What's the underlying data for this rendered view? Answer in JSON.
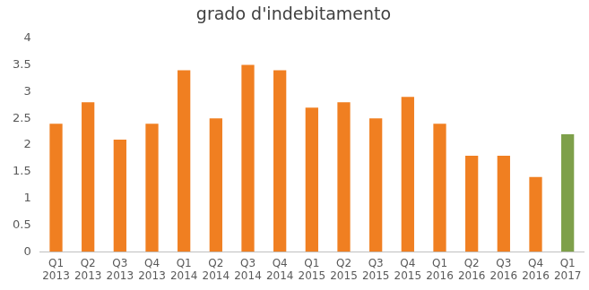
{
  "chart_data": {
    "type": "bar",
    "title": "grado d'indebitamento",
    "categories": [
      "Q1 2013",
      "Q2 2013",
      "Q3 2013",
      "Q4 2013",
      "Q1 2014",
      "Q2 2014",
      "Q3 2014",
      "Q4 2014",
      "Q1 2015",
      "Q2 2015",
      "Q3 2015",
      "Q4 2015",
      "Q1 2016",
      "Q2 2016",
      "Q3 2016",
      "Q4 2016",
      "Q1 2017"
    ],
    "values": [
      2.4,
      2.8,
      2.1,
      2.4,
      3.4,
      2.5,
      3.5,
      3.4,
      2.7,
      2.8,
      2.5,
      2.9,
      2.4,
      1.8,
      1.8,
      1.4,
      2.2
    ],
    "colors": [
      "#f07f21",
      "#f07f21",
      "#f07f21",
      "#f07f21",
      "#f07f21",
      "#f07f21",
      "#f07f21",
      "#f07f21",
      "#f07f21",
      "#f07f21",
      "#f07f21",
      "#f07f21",
      "#f07f21",
      "#f07f21",
      "#f07f21",
      "#f07f21",
      "#7ea04a"
    ],
    "ylim": [
      0,
      4
    ],
    "yticks": [
      0,
      0.5,
      1,
      1.5,
      2,
      2.5,
      3,
      3.5,
      4
    ],
    "grid": false
  }
}
